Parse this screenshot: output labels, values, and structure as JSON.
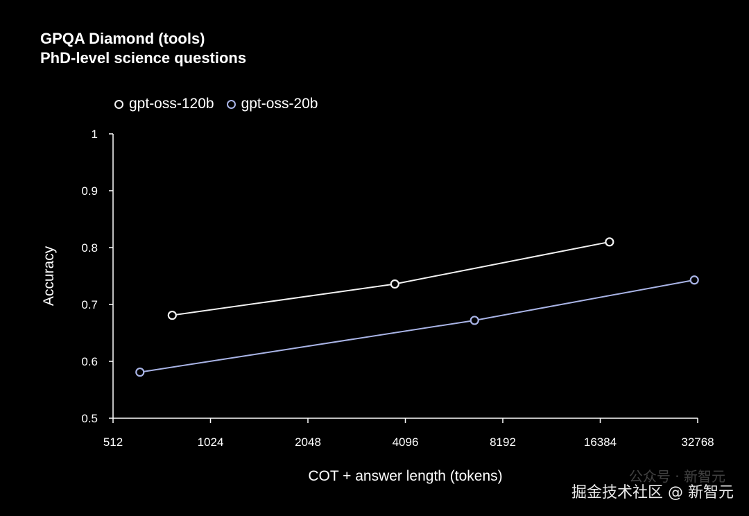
{
  "title_line1": "GPQA Diamond (tools)",
  "title_line2": "PhD-level science questions",
  "watermark_top": "公众号 · 新智元",
  "watermark": "掘金技术社区 @ 新智元",
  "colors": {
    "background": "#000000",
    "axis": "#ffffff",
    "series_120b": "#f2f2f2",
    "series_20b": "#a9b4e6"
  },
  "chart_data": {
    "type": "line",
    "title": "GPQA Diamond (tools)",
    "subtitle": "PhD-level science questions",
    "xlabel": "COT + answer length (tokens)",
    "ylabel": "Accuracy",
    "xscale": "log2",
    "xlim": [
      512,
      32768
    ],
    "ylim": [
      0.5,
      1.0
    ],
    "xticks": [
      512,
      1024,
      2048,
      4096,
      8192,
      16384,
      32768
    ],
    "yticks": [
      0.5,
      0.6,
      0.7,
      0.8,
      0.9,
      1.0
    ],
    "ytick_labels": [
      "0.5",
      "0.6",
      "0.7",
      "0.8",
      "0.9",
      "1"
    ],
    "grid": false,
    "legend_position": "top-left",
    "series": [
      {
        "name": "gpt-oss-120b",
        "color": "#f2f2f2",
        "x": [
          780,
          3800,
          17500
        ],
        "y": [
          0.681,
          0.736,
          0.81
        ]
      },
      {
        "name": "gpt-oss-20b",
        "color": "#a9b4e6",
        "x": [
          620,
          6700,
          32000
        ],
        "y": [
          0.581,
          0.672,
          0.743
        ]
      }
    ]
  }
}
